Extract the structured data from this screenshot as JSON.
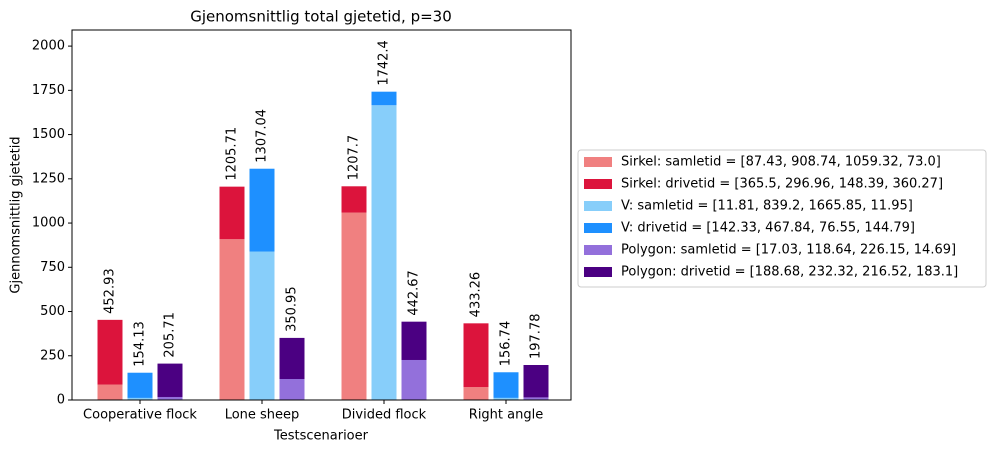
{
  "chart_data": {
    "type": "stacked-grouped-bar",
    "title": "Gjenomsnittlig total gjetetid, p=30",
    "x_label": "Testscenarioer",
    "y_label": "Gjennomsnittlig gjetetid",
    "categories": [
      "Cooperative flock",
      "Lone sheep",
      "Divided flock",
      "Right angle"
    ],
    "series": [
      {
        "name": "Sirkel: samletid = [87.43, 908.74, 1059.32, 73.0]",
        "color": "#f08080",
        "stack": 0,
        "values": [
          87.43,
          908.74,
          1059.32,
          73.0
        ]
      },
      {
        "name": "Sirkel: drivetid = [365.5, 296.96, 148.39, 360.27]",
        "color": "#dc143c",
        "stack": 0,
        "values": [
          365.5,
          296.96,
          148.39,
          360.27
        ]
      },
      {
        "name": "V: samletid = [11.81, 839.2, 1665.85, 11.95]",
        "color": "#87cefa",
        "stack": 1,
        "values": [
          11.81,
          839.2,
          1665.85,
          11.95
        ]
      },
      {
        "name": "V: drivetid = [142.33, 467.84, 76.55, 144.79]",
        "color": "#1e90ff",
        "stack": 1,
        "values": [
          142.33,
          467.84,
          76.55,
          144.79
        ]
      },
      {
        "name": "Polygon: samletid = [17.03, 118.64, 226.15, 14.69]",
        "color": "#9370db",
        "stack": 2,
        "values": [
          17.03,
          118.64,
          226.15,
          14.69
        ]
      },
      {
        "name": "Polygon: drivetid = [188.68, 232.32, 216.52, 183.1]",
        "color": "#4b0082",
        "stack": 2,
        "values": [
          188.68,
          232.32,
          216.52,
          183.1
        ]
      }
    ],
    "stack_totals": [
      [
        452.93,
        1205.71,
        1207.7,
        433.26
      ],
      [
        154.13,
        1307.04,
        1742.4,
        156.74
      ],
      [
        205.71,
        350.95,
        442.67,
        197.78
      ]
    ],
    "ylim": [
      0,
      2091
    ],
    "yticks": [
      0,
      250,
      500,
      750,
      1000,
      1250,
      1500,
      1750,
      2000
    ],
    "legend": "right"
  }
}
